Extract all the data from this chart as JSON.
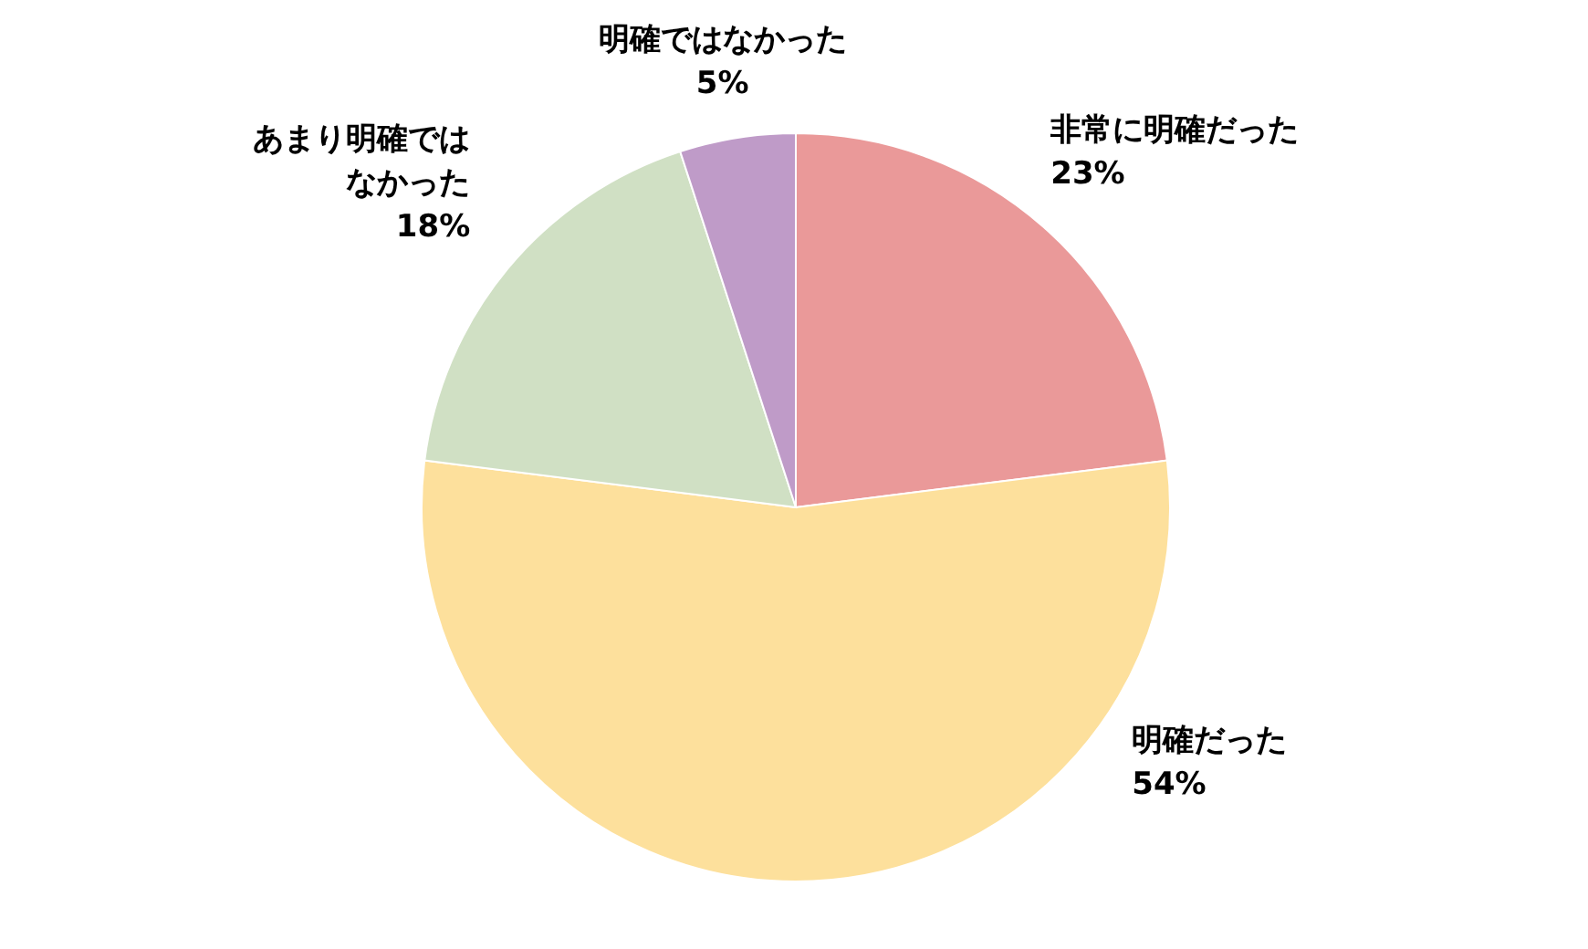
{
  "chart_data": {
    "type": "pie",
    "categories": [
      "非常に明確だった",
      "明確だった",
      "あまり明確ではなかった",
      "明確ではなかった"
    ],
    "values": [
      23,
      54,
      18,
      5
    ],
    "colors": [
      "#ea9999",
      "#fde09c",
      "#d0e0c4",
      "#bf9bc8"
    ],
    "value_labels": [
      "23%",
      "54%",
      "18%",
      "5%"
    ]
  }
}
